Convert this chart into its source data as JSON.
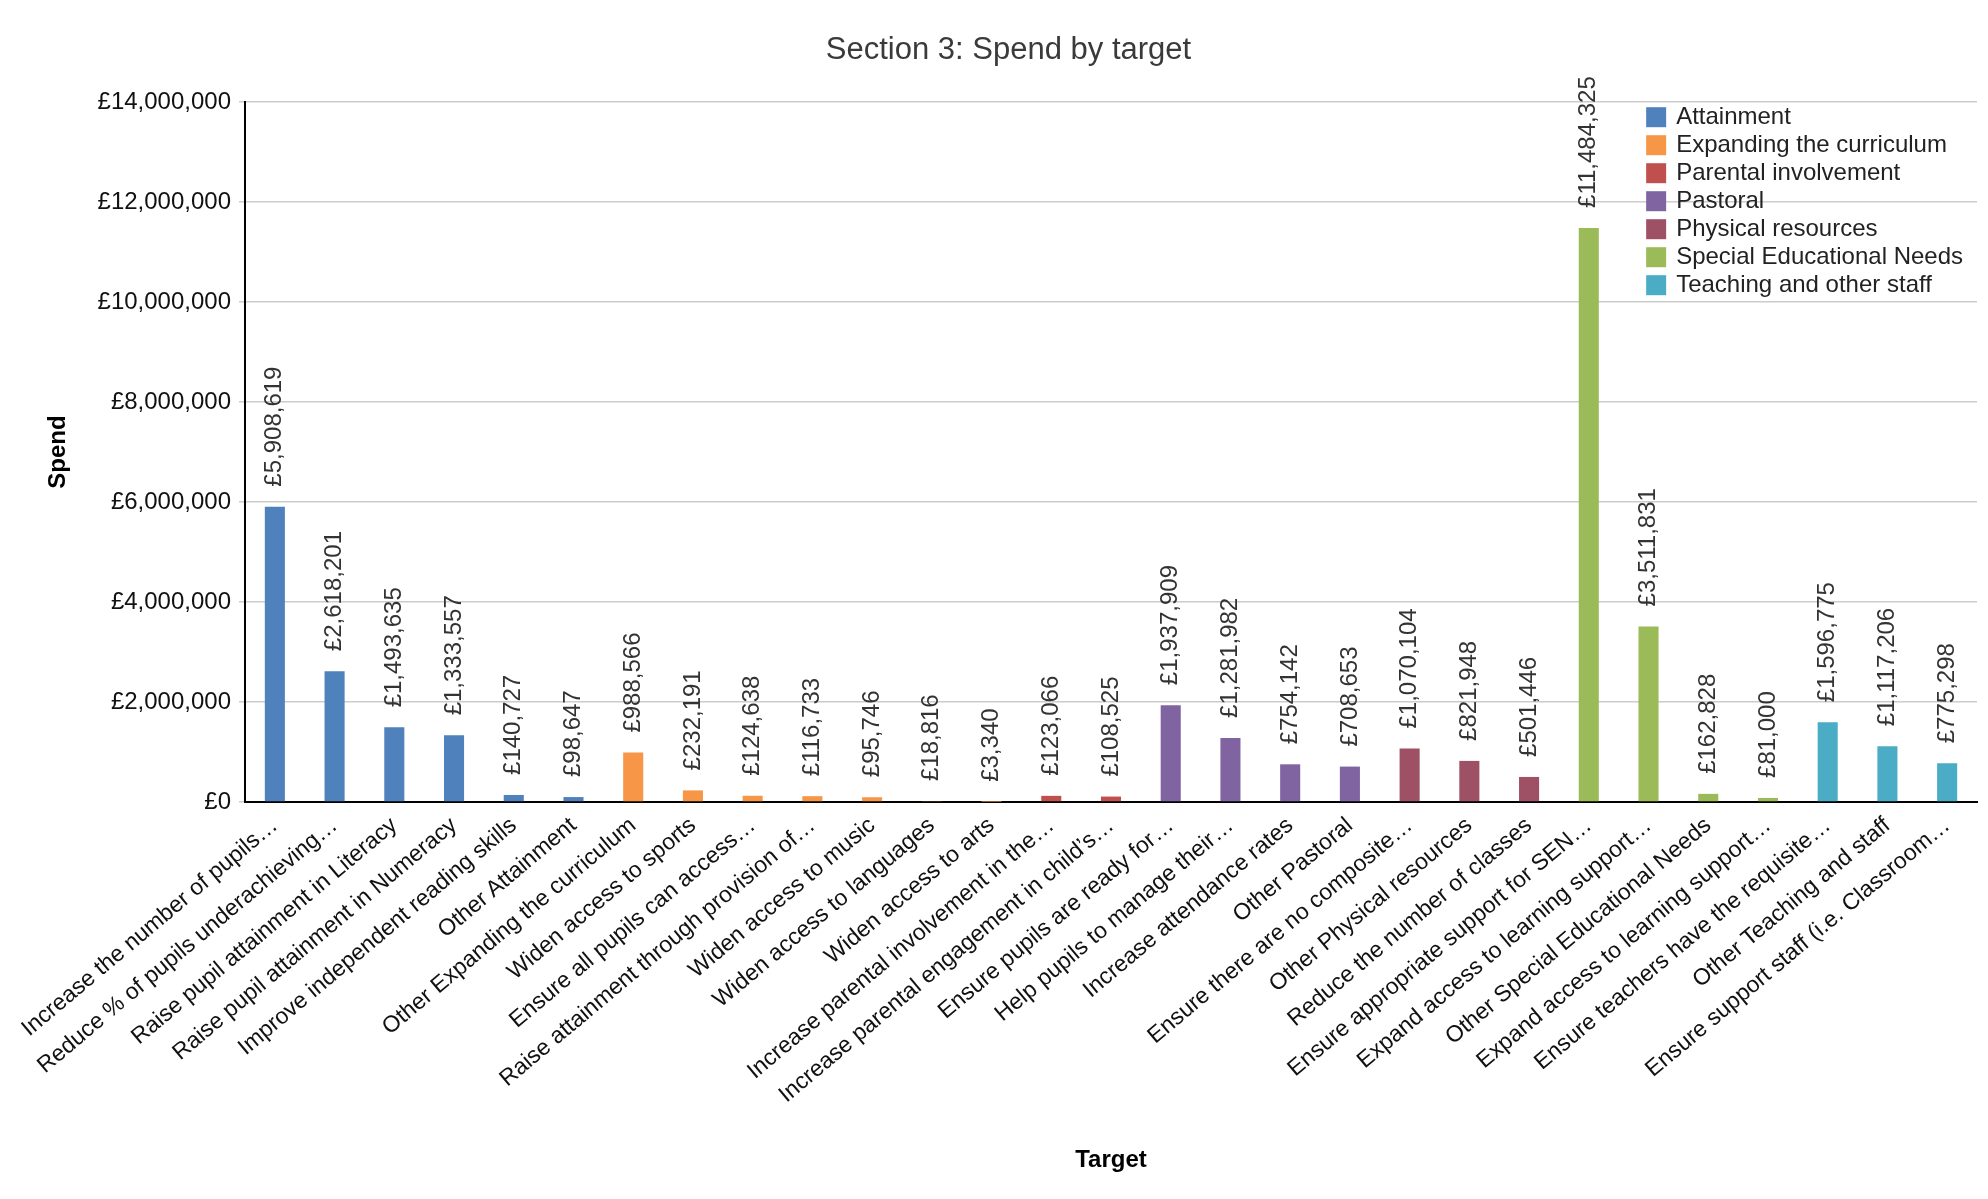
{
  "chart_data": {
    "type": "bar",
    "title": "Section 3: Spend by target",
    "xlabel": "Target",
    "ylabel": "Spend",
    "categories": [
      "Increase the number of pupils…",
      "Reduce % of pupils underachieving…",
      "Raise pupil attainment in Literacy",
      "Raise pupil attainment in Numeracy",
      "Improve independent reading skills",
      "Other Attainment",
      "Other Expanding the curriculum",
      "Widen access to sports",
      "Ensure all pupils can access…",
      "Raise attainment through provision of…",
      "Widen access to music",
      "Widen access to languages",
      "Widen access to arts",
      "Increase parental involvement in the…",
      "Increase parental engagement in child’s…",
      "Ensure pupils are ready for…",
      "Help pupils to manage their…",
      "Increase attendance rates",
      "Other Pastoral",
      "Ensure there are no composite…",
      "Other Physical resources",
      "Reduce the number of classes",
      "Ensure appropriate support for SEN…",
      "Expand access to learning support…",
      "Other Special Educational Needs",
      "Expand access to learning support…",
      "Ensure teachers have the requisite…",
      "Other Teaching and staff",
      "Ensure support staff (i.e. Classroom…"
    ],
    "series": [
      {
        "name": "Attainment",
        "color": "#4f81bd",
        "values": [
          5908619,
          2618201,
          1493635,
          1333557,
          140727,
          98647,
          null,
          null,
          null,
          null,
          null,
          null,
          null,
          null,
          null,
          null,
          null,
          null,
          null,
          null,
          null,
          null,
          null,
          null,
          null,
          null,
          null,
          null,
          null
        ],
        "value_labels": [
          "£5,908,619",
          "£2,618,201",
          "£1,493,635",
          "£1,333,557",
          "£140,727",
          "£98,647",
          null,
          null,
          null,
          null,
          null,
          null,
          null,
          null,
          null,
          null,
          null,
          null,
          null,
          null,
          null,
          null,
          null,
          null,
          null,
          null,
          null,
          null,
          null
        ]
      },
      {
        "name": "Expanding the curriculum",
        "color": "#f79646",
        "values": [
          null,
          null,
          null,
          null,
          null,
          null,
          988566,
          232191,
          124638,
          116733,
          95746,
          18816,
          3340,
          null,
          null,
          null,
          null,
          null,
          null,
          null,
          null,
          null,
          null,
          null,
          null,
          null,
          null,
          null,
          null
        ],
        "value_labels": [
          null,
          null,
          null,
          null,
          null,
          null,
          "£988,566",
          "£232,191",
          "£124,638",
          "£116,733",
          "£95,746",
          "£18,816",
          "£3,340",
          null,
          null,
          null,
          null,
          null,
          null,
          null,
          null,
          null,
          null,
          null,
          null,
          null,
          null,
          null,
          null
        ]
      },
      {
        "name": "Parental involvement",
        "color": "#c0504d",
        "values": [
          null,
          null,
          null,
          null,
          null,
          null,
          null,
          null,
          null,
          null,
          null,
          null,
          null,
          123066,
          108525,
          null,
          null,
          null,
          null,
          null,
          null,
          null,
          null,
          null,
          null,
          null,
          null,
          null,
          null
        ],
        "value_labels": [
          null,
          null,
          null,
          null,
          null,
          null,
          null,
          null,
          null,
          null,
          null,
          null,
          null,
          "£123,066",
          "£108,525",
          null,
          null,
          null,
          null,
          null,
          null,
          null,
          null,
          null,
          null,
          null,
          null,
          null,
          null
        ]
      },
      {
        "name": "Pastoral",
        "color": "#8064a2",
        "values": [
          null,
          null,
          null,
          null,
          null,
          null,
          null,
          null,
          null,
          null,
          null,
          null,
          null,
          null,
          null,
          1937909,
          1281982,
          754142,
          708653,
          null,
          null,
          null,
          null,
          null,
          null,
          null,
          null,
          null,
          null
        ],
        "value_labels": [
          null,
          null,
          null,
          null,
          null,
          null,
          null,
          null,
          null,
          null,
          null,
          null,
          null,
          null,
          null,
          "£1,937,909",
          "£1,281,982",
          "£754,142",
          "£708,653",
          null,
          null,
          null,
          null,
          null,
          null,
          null,
          null,
          null,
          null
        ]
      },
      {
        "name": "Physical resources",
        "color": "#9e5064",
        "values": [
          null,
          null,
          null,
          null,
          null,
          null,
          null,
          null,
          null,
          null,
          null,
          null,
          null,
          null,
          null,
          null,
          null,
          null,
          null,
          1070104,
          821948,
          501446,
          null,
          null,
          null,
          null,
          null,
          null,
          null
        ],
        "value_labels": [
          null,
          null,
          null,
          null,
          null,
          null,
          null,
          null,
          null,
          null,
          null,
          null,
          null,
          null,
          null,
          null,
          null,
          null,
          null,
          "£1,070,104",
          "£821,948",
          "£501,446",
          null,
          null,
          null,
          null,
          null,
          null,
          null
        ]
      },
      {
        "name": "Special Educational Needs",
        "color": "#9bbb59",
        "values": [
          null,
          null,
          null,
          null,
          null,
          null,
          null,
          null,
          null,
          null,
          null,
          null,
          null,
          null,
          null,
          null,
          null,
          null,
          null,
          null,
          null,
          null,
          11484325,
          3511831,
          162828,
          81000,
          null,
          null,
          null
        ],
        "value_labels": [
          null,
          null,
          null,
          null,
          null,
          null,
          null,
          null,
          null,
          null,
          null,
          null,
          null,
          null,
          null,
          null,
          null,
          null,
          null,
          null,
          null,
          null,
          "£11,484,325",
          "£3,511,831",
          "£162,828",
          "£81,000",
          null,
          null,
          null
        ]
      },
      {
        "name": "Teaching and other staff",
        "color": "#4bacc6",
        "values": [
          null,
          null,
          null,
          null,
          null,
          null,
          null,
          null,
          null,
          null,
          null,
          null,
          null,
          null,
          null,
          null,
          null,
          null,
          null,
          null,
          null,
          null,
          null,
          null,
          null,
          null,
          1596775,
          1117206,
          775298
        ],
        "value_labels": [
          null,
          null,
          null,
          null,
          null,
          null,
          null,
          null,
          null,
          null,
          null,
          null,
          null,
          null,
          null,
          null,
          null,
          null,
          null,
          null,
          null,
          null,
          null,
          null,
          null,
          null,
          "£1,596,775",
          "£1,117,206",
          "£775,298"
        ]
      }
    ],
    "ylim": [
      0,
      14000000
    ],
    "yticks": [
      {
        "value": 0,
        "label": "£0"
      },
      {
        "value": 2000000,
        "label": "£2,000,000"
      },
      {
        "value": 4000000,
        "label": "£4,000,000"
      },
      {
        "value": 6000000,
        "label": "£6,000,000"
      },
      {
        "value": 8000000,
        "label": "£8,000,000"
      },
      {
        "value": 10000000,
        "label": "£10,000,000"
      },
      {
        "value": 12000000,
        "label": "£12,000,000"
      },
      {
        "value": 14000000,
        "label": "£14,000,000"
      }
    ],
    "grid": "y",
    "legend": "top right"
  }
}
